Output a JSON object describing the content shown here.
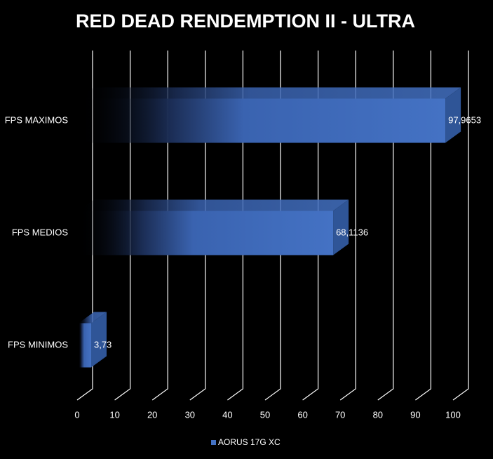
{
  "chart_data": {
    "type": "bar",
    "orientation": "horizontal",
    "title": "RED DEAD RENDEMPTION II - ULTRA",
    "categories": [
      "FPS MAXIMOS",
      "FPS MEDIOS",
      "FPS MINIMOS"
    ],
    "series": [
      {
        "name": "AORUS 17G XC",
        "color": "#4472c4",
        "values": [
          97.9653,
          68.1136,
          3.73
        ],
        "value_labels": [
          "97,9653",
          "68,1136",
          "3,73"
        ]
      }
    ],
    "xlim": [
      0,
      100
    ],
    "xticks": [
      0,
      10,
      20,
      30,
      40,
      50,
      60,
      70,
      80,
      90,
      100
    ],
    "grid": true
  }
}
